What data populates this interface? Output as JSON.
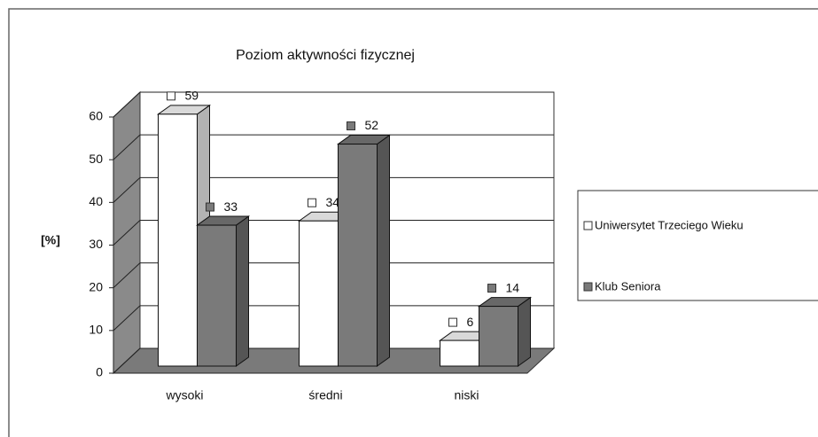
{
  "chart_data": {
    "type": "bar3d",
    "title": "Poziom aktywności fizycznej",
    "y_label": "[%]",
    "categories": [
      "wysoki",
      "średni",
      "niski"
    ],
    "series": [
      {
        "name": "Uniwersytet Trzeciego Wieku",
        "color": "#ffffff",
        "values": [
          59,
          34,
          6
        ]
      },
      {
        "name": "Klub Seniora",
        "color": "#7a7a7a",
        "values": [
          33,
          52,
          14
        ]
      }
    ],
    "ylim": [
      0,
      60
    ],
    "yticks": [
      0,
      10,
      20,
      30,
      40,
      50,
      60
    ],
    "grid": true,
    "legend": "right"
  }
}
